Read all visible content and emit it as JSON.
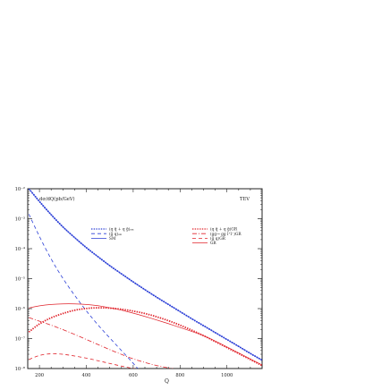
{
  "chart_data": {
    "type": "line",
    "frame_label": "dσ/dQ(pb/GeV)",
    "corner_label": "TEV",
    "xlabel": "Q",
    "ylabel": "",
    "xlim": [
      150,
      1150
    ],
    "ylim_log10": [
      -8,
      -2
    ],
    "log_y": true,
    "grid": false,
    "x_ticks": [
      200,
      400,
      600,
      800,
      1000
    ],
    "y_ticks": [
      {
        "exp": -2,
        "label": "10⁻²"
      },
      {
        "exp": -3,
        "label": "10⁻³"
      },
      {
        "exp": -4,
        "label": "10⁻⁴"
      },
      {
        "exp": -5,
        "label": "10⁻⁵"
      },
      {
        "exp": -6,
        "label": "10⁻⁶"
      },
      {
        "exp": -7,
        "label": "10⁻⁷"
      },
      {
        "exp": -8,
        "label": "10⁻⁸"
      }
    ],
    "legend_placement": "top",
    "colors": {
      "blue": "#2b3fd6",
      "red": "#e0232b"
    },
    "series": [
      {
        "name": "(q q̄ + q ḡ)ₛₘ",
        "color": "#2b3fd6",
        "style": "dotted-thick",
        "x": [
          155,
          200,
          250,
          300,
          350,
          400,
          450,
          500,
          550,
          600,
          650,
          700,
          750,
          800,
          850,
          900,
          950,
          1000,
          1050,
          1100,
          1150
        ],
        "log10_y": [
          -2.0,
          -2.43,
          -2.87,
          -3.28,
          -3.63,
          -3.97,
          -4.27,
          -4.57,
          -4.84,
          -5.11,
          -5.37,
          -5.62,
          -5.86,
          -6.1,
          -6.34,
          -6.57,
          -6.8,
          -7.03,
          -7.26,
          -7.5,
          -7.72
        ]
      },
      {
        "name": "(ḡ q)ₛₘ",
        "color": "#2b3fd6",
        "style": "dashed",
        "x": [
          155,
          200,
          250,
          300,
          350,
          400,
          450,
          500,
          550,
          600,
          630
        ],
        "log10_y": [
          -2.85,
          -3.6,
          -4.36,
          -5.0,
          -5.56,
          -6.08,
          -6.55,
          -6.98,
          -7.4,
          -7.82,
          -8.1
        ]
      },
      {
        "name": "SM",
        "color": "#2b3fd6",
        "style": "solid",
        "x": [
          155,
          200,
          250,
          300,
          350,
          400,
          450,
          500,
          550,
          600,
          650,
          700,
          750,
          800,
          850,
          900,
          950,
          1000,
          1050,
          1100,
          1150
        ],
        "log10_y": [
          -2.0,
          -2.43,
          -2.87,
          -3.28,
          -3.63,
          -3.97,
          -4.27,
          -4.57,
          -4.84,
          -5.11,
          -5.37,
          -5.62,
          -5.86,
          -6.1,
          -6.34,
          -6.57,
          -6.8,
          -7.03,
          -7.26,
          -7.5,
          -7.72
        ]
      },
      {
        "name": "(q q̄ + q ḡ)GR",
        "color": "#e0232b",
        "style": "dotted-thick",
        "x": [
          155,
          200,
          250,
          300,
          350,
          400,
          450,
          500,
          550,
          600,
          650,
          700,
          750,
          800,
          850,
          900,
          950,
          1000,
          1050,
          1100,
          1150
        ],
        "log10_y": [
          -6.78,
          -6.5,
          -6.3,
          -6.16,
          -6.05,
          -5.99,
          -5.97,
          -5.98,
          -6.02,
          -6.08,
          -6.16,
          -6.27,
          -6.4,
          -6.55,
          -6.72,
          -6.9,
          -7.1,
          -7.3,
          -7.5,
          -7.7,
          -7.9
        ]
      },
      {
        "name": "(gg→ gg l⁺l⁻)GR",
        "color": "#e0232b",
        "style": "dashdot",
        "x": [
          155,
          200,
          250,
          300,
          350,
          400,
          450,
          500,
          550,
          600,
          650,
          700,
          750,
          800,
          830
        ],
        "log10_y": [
          -6.3,
          -6.42,
          -6.55,
          -6.7,
          -6.86,
          -7.03,
          -7.2,
          -7.37,
          -7.53,
          -7.68,
          -7.8,
          -7.9,
          -7.98,
          -8.05,
          -8.1
        ]
      },
      {
        "name": "(ḡ q)GR",
        "color": "#e0232b",
        "style": "dashed",
        "x": [
          155,
          200,
          250,
          300,
          350,
          400,
          450,
          500,
          550,
          600,
          650,
          680
        ],
        "log10_y": [
          -7.7,
          -7.55,
          -7.5,
          -7.52,
          -7.58,
          -7.65,
          -7.74,
          -7.83,
          -7.92,
          -8.0,
          -8.07,
          -8.1
        ]
      },
      {
        "name": "GR",
        "color": "#e0232b",
        "style": "solid",
        "x": [
          155,
          200,
          250,
          300,
          350,
          400,
          450,
          500,
          550,
          600,
          650,
          700,
          750,
          800,
          850,
          900,
          950,
          1000,
          1050,
          1100,
          1150
        ],
        "log10_y": [
          -5.98,
          -5.9,
          -5.86,
          -5.84,
          -5.84,
          -5.86,
          -5.9,
          -5.97,
          -6.05,
          -6.15,
          -6.26,
          -6.38,
          -6.5,
          -6.63,
          -6.76,
          -6.9,
          -7.08,
          -7.28,
          -7.48,
          -7.68,
          -7.88
        ]
      }
    ]
  }
}
